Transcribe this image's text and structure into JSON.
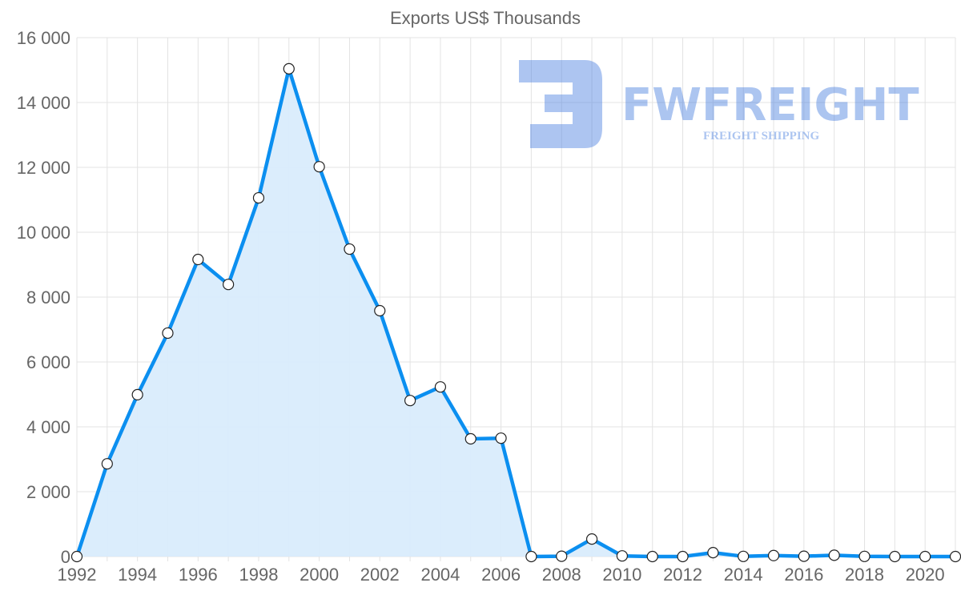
{
  "chart_data": {
    "type": "area",
    "title": "Exports US$ Thousands",
    "xlabel": "",
    "ylabel": "",
    "x": [
      1992,
      1993,
      1994,
      1995,
      1996,
      1997,
      1998,
      1999,
      2000,
      2001,
      2002,
      2003,
      2004,
      2005,
      2006,
      2007,
      2008,
      2009,
      2010,
      2011,
      2012,
      2013,
      2014,
      2015,
      2016,
      2017,
      2018,
      2019,
      2020,
      2021
    ],
    "series": [
      {
        "name": "Exports US$ Thousands",
        "values": [
          0,
          2860,
          4990,
          6890,
          9160,
          8390,
          11060,
          15040,
          12020,
          9480,
          7580,
          4810,
          5230,
          3630,
          3650,
          0,
          10,
          540,
          20,
          0,
          0,
          120,
          5,
          30,
          10,
          40,
          5,
          0,
          0,
          0
        ]
      }
    ],
    "xlim": [
      1992,
      2021
    ],
    "ylim": [
      0,
      16000
    ],
    "yticks": [
      "0",
      "2 000",
      "4 000",
      "6 000",
      "8 000",
      "10 000",
      "12 000",
      "14 000",
      "16 000"
    ],
    "xticks": [
      "1992",
      "1994",
      "1996",
      "1998",
      "2000",
      "2002",
      "2004",
      "2006",
      "2008",
      "2010",
      "2012",
      "2014",
      "2016",
      "2018",
      "2020"
    ],
    "grid": true,
    "legend": "none",
    "colors": {
      "line": "#0b8ff0",
      "fill": "#d9ecfc",
      "point_fill": "#ffffff",
      "point_stroke": "#222222"
    }
  },
  "watermark": {
    "brand": "FWFREIGHT",
    "tagline": "FREIGHT SHIPPING"
  }
}
